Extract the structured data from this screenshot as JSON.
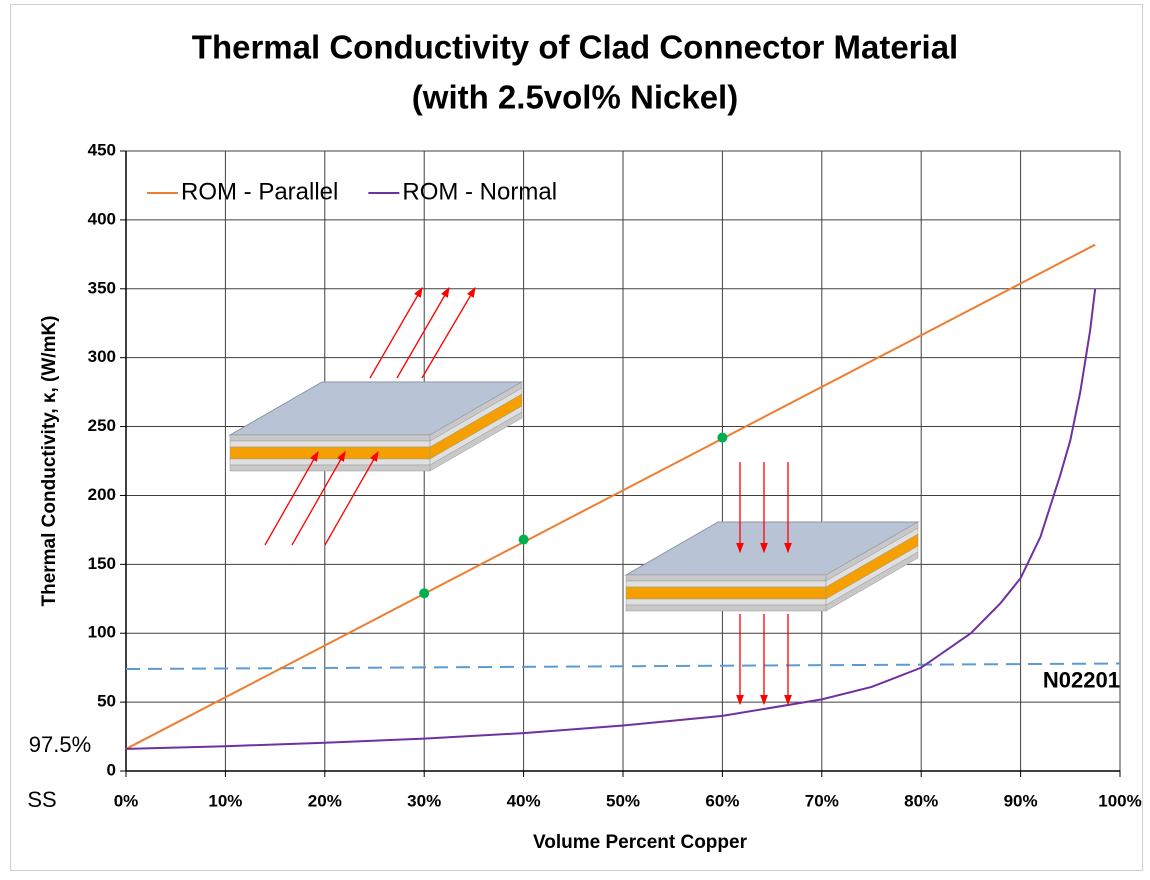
{
  "chart_data": {
    "type": "line",
    "title": "Thermal Conductivity of Clad Connector Material",
    "subtitle": "(with 2.5vol% Nickel)",
    "x_label": "Volume Percent Copper",
    "y_label": "Thermal Conductivity,  κ, (W/mK)",
    "xlim": [
      0,
      100
    ],
    "ylim": [
      0,
      450
    ],
    "xticks": [
      {
        "value": 0,
        "label": "0%"
      },
      {
        "value": 10,
        "label": "10%"
      },
      {
        "value": 20,
        "label": "20%"
      },
      {
        "value": 30,
        "label": "30%"
      },
      {
        "value": 40,
        "label": "40%"
      },
      {
        "value": 50,
        "label": "50%"
      },
      {
        "value": 60,
        "label": "60%"
      },
      {
        "value": 70,
        "label": "70%"
      },
      {
        "value": 80,
        "label": "80%"
      },
      {
        "value": 90,
        "label": "90%"
      },
      {
        "value": 100,
        "label": "100%"
      }
    ],
    "yticks": [
      0,
      50,
      100,
      150,
      200,
      250,
      300,
      350,
      400,
      450
    ],
    "grid": true,
    "legend": "top-left",
    "series": [
      {
        "name": "ROM - Parallel",
        "color": "#ed7d31",
        "x": [
          0,
          97.5
        ],
        "values": [
          16,
          382
        ]
      },
      {
        "name": "ROM - Normal",
        "color": "#7030a0",
        "x": [
          0,
          10,
          20,
          30,
          40,
          50,
          60,
          70,
          75,
          80,
          85,
          88,
          90,
          92,
          94,
          95,
          96,
          97,
          97.5
        ],
        "values": [
          16,
          18,
          20.5,
          23.5,
          27.5,
          33,
          40,
          52,
          61,
          75,
          100,
          122,
          140,
          170,
          215,
          240,
          275,
          320,
          350
        ]
      }
    ],
    "markers": {
      "color": "#00b050",
      "x": [
        30,
        40,
        60
      ],
      "values": [
        129,
        168,
        242
      ]
    },
    "reference_line": {
      "label": "N02201",
      "color": "#5b9bd5",
      "x": [
        0,
        100
      ],
      "values": [
        74,
        78
      ]
    },
    "annotations": [
      "97.5%",
      "SS"
    ]
  }
}
